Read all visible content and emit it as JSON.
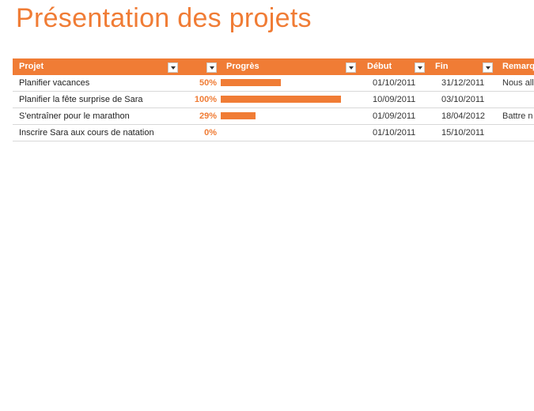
{
  "title": "Présentation des projets",
  "headers": {
    "projet": "Projet",
    "progres": "Progrès",
    "debut": "Début",
    "fin": "Fin",
    "remarques": "Remarq"
  },
  "rows": [
    {
      "projet": "Planifier vacances",
      "pct": "50%",
      "progress": 0.5,
      "debut": "01/10/2011",
      "fin": "31/12/2011",
      "remarque": "Nous all"
    },
    {
      "projet": "Planifier la fête surprise de Sara",
      "pct": "100%",
      "progress": 1.0,
      "debut": "10/09/2011",
      "fin": "03/10/2011",
      "remarque": ""
    },
    {
      "projet": "S'entraîner pour le marathon",
      "pct": "29%",
      "progress": 0.29,
      "debut": "01/09/2011",
      "fin": "18/04/2012",
      "remarque": "Battre n"
    },
    {
      "projet": "Inscrire Sara aux cours de natation",
      "pct": "0%",
      "progress": 0.0,
      "debut": "01/10/2011",
      "fin": "15/10/2011",
      "remarque": ""
    }
  ],
  "colors": {
    "accent": "#f07c35"
  }
}
